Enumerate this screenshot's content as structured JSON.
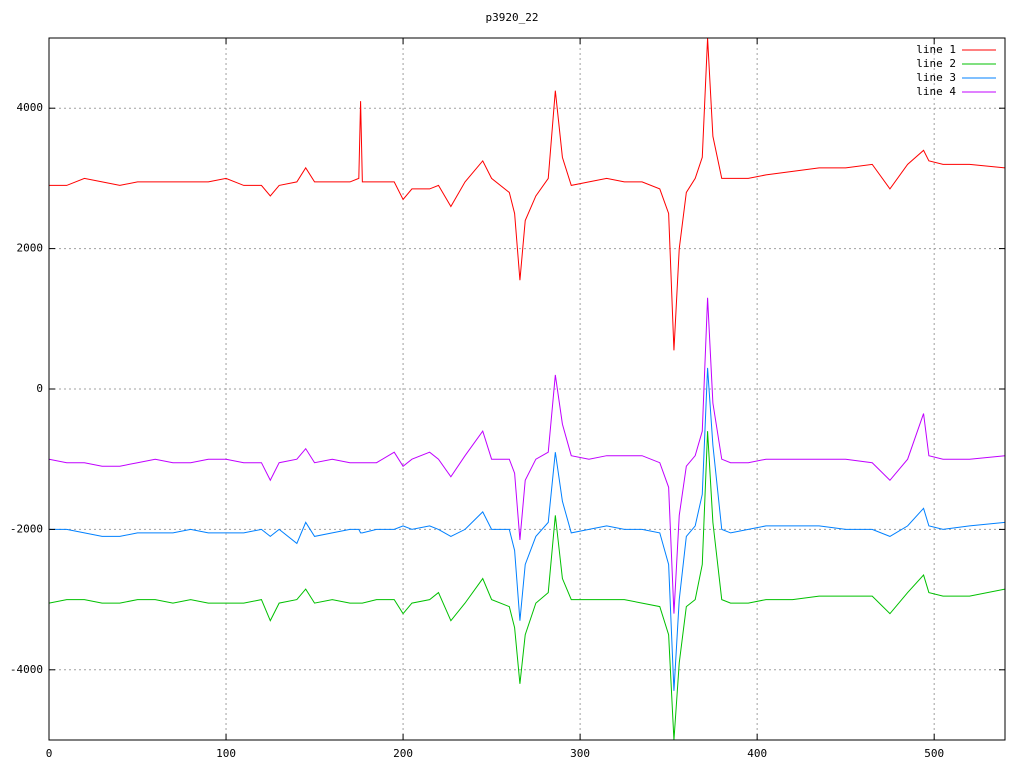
{
  "chart_data": {
    "type": "line",
    "title": "p3920_22",
    "x": [
      0,
      10,
      20,
      30,
      40,
      50,
      60,
      70,
      80,
      90,
      100,
      110,
      120,
      125,
      130,
      140,
      145,
      150,
      160,
      170,
      175,
      176,
      177,
      185,
      195,
      200,
      205,
      215,
      220,
      227,
      235,
      245,
      250,
      260,
      263,
      266,
      269,
      275,
      282,
      286,
      290,
      295,
      305,
      315,
      325,
      335,
      345,
      350,
      353,
      356,
      360,
      365,
      369,
      372,
      375,
      380,
      385,
      395,
      405,
      420,
      435,
      450,
      465,
      475,
      485,
      494,
      497,
      505,
      520,
      540
    ],
    "series": [
      {
        "name": "line 1",
        "color": "#ff0000",
        "values": [
          2900,
          2900,
          3000,
          2950,
          2900,
          2950,
          2950,
          2950,
          2950,
          2950,
          3000,
          2900,
          2900,
          2750,
          2900,
          2950,
          3150,
          2950,
          2950,
          2950,
          3000,
          4100,
          2950,
          2950,
          2950,
          2700,
          2850,
          2850,
          2900,
          2600,
          2950,
          3250,
          3000,
          2800,
          2500,
          1550,
          2400,
          2750,
          3000,
          4250,
          3300,
          2900,
          2950,
          3000,
          2950,
          2950,
          2850,
          2500,
          550,
          2000,
          2800,
          3000,
          3300,
          5000,
          3600,
          3000,
          3000,
          3000,
          3050,
          3100,
          3150,
          3150,
          3200,
          2850,
          3200,
          3400,
          3250,
          3200,
          3200,
          3150
        ]
      },
      {
        "name": "line 2",
        "color": "#00c000",
        "values": [
          -3050,
          -3000,
          -3000,
          -3050,
          -3050,
          -3000,
          -3000,
          -3050,
          -3000,
          -3050,
          -3050,
          -3050,
          -3000,
          -3300,
          -3050,
          -3000,
          -2850,
          -3050,
          -3000,
          -3050,
          -3050,
          -3050,
          -3050,
          -3000,
          -3000,
          -3200,
          -3050,
          -3000,
          -2900,
          -3300,
          -3050,
          -2700,
          -3000,
          -3100,
          -3400,
          -4200,
          -3500,
          -3050,
          -2900,
          -1800,
          -2700,
          -3000,
          -3000,
          -3000,
          -3000,
          -3050,
          -3100,
          -3500,
          -5000,
          -3900,
          -3100,
          -3000,
          -2500,
          -600,
          -1900,
          -3000,
          -3050,
          -3050,
          -3000,
          -3000,
          -2950,
          -2950,
          -2950,
          -3200,
          -2900,
          -2650,
          -2900,
          -2950,
          -2950,
          -2850
        ]
      },
      {
        "name": "line 3",
        "color": "#0080ff",
        "values": [
          -2000,
          -2000,
          -2050,
          -2100,
          -2100,
          -2050,
          -2050,
          -2050,
          -2000,
          -2050,
          -2050,
          -2050,
          -2000,
          -2100,
          -2000,
          -2200,
          -1900,
          -2100,
          -2050,
          -2000,
          -2000,
          -2050,
          -2050,
          -2000,
          -2000,
          -1950,
          -2000,
          -1950,
          -2000,
          -2100,
          -2000,
          -1750,
          -2000,
          -2000,
          -2300,
          -3300,
          -2500,
          -2100,
          -1900,
          -900,
          -1600,
          -2050,
          -2000,
          -1950,
          -2000,
          -2000,
          -2050,
          -2500,
          -4300,
          -3000,
          -2100,
          -1950,
          -1500,
          300,
          -800,
          -2000,
          -2050,
          -2000,
          -1950,
          -1950,
          -1950,
          -2000,
          -2000,
          -2100,
          -1950,
          -1700,
          -1950,
          -2000,
          -1950,
          -1900
        ]
      },
      {
        "name": "line 4",
        "color": "#c000ff",
        "values": [
          -1000,
          -1050,
          -1050,
          -1100,
          -1100,
          -1050,
          -1000,
          -1050,
          -1050,
          -1000,
          -1000,
          -1050,
          -1050,
          -1300,
          -1050,
          -1000,
          -850,
          -1050,
          -1000,
          -1050,
          -1050,
          -1050,
          -1050,
          -1050,
          -900,
          -1100,
          -1000,
          -900,
          -1000,
          -1250,
          -950,
          -600,
          -1000,
          -1000,
          -1200,
          -2150,
          -1300,
          -1000,
          -900,
          200,
          -500,
          -950,
          -1000,
          -950,
          -950,
          -950,
          -1050,
          -1400,
          -3200,
          -1800,
          -1100,
          -950,
          -600,
          1300,
          -200,
          -1000,
          -1050,
          -1050,
          -1000,
          -1000,
          -1000,
          -1000,
          -1050,
          -1300,
          -1000,
          -350,
          -950,
          -1000,
          -1000,
          -950
        ]
      }
    ],
    "xlim": [
      0,
      540
    ],
    "ylim": [
      -5000,
      5000
    ],
    "xticks": [
      0,
      100,
      200,
      300,
      400,
      500
    ],
    "yticks": [
      -4000,
      -2000,
      0,
      2000,
      4000
    ],
    "grid": true,
    "legend": "top-right"
  }
}
